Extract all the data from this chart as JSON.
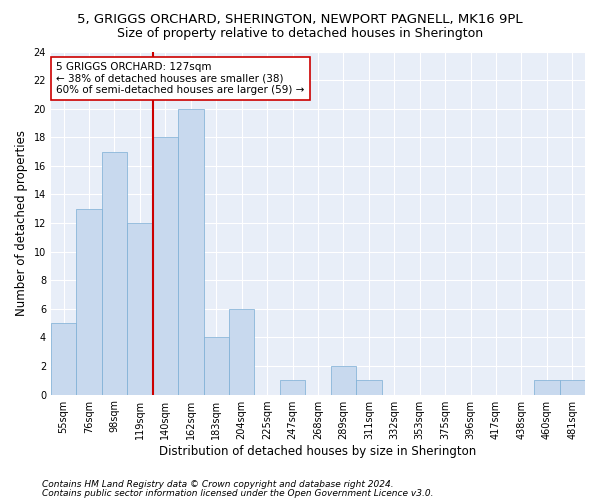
{
  "title": "5, GRIGGS ORCHARD, SHERINGTON, NEWPORT PAGNELL, MK16 9PL",
  "subtitle": "Size of property relative to detached houses in Sherington",
  "xlabel": "Distribution of detached houses by size in Sherington",
  "ylabel": "Number of detached properties",
  "categories": [
    "55sqm",
    "76sqm",
    "98sqm",
    "119sqm",
    "140sqm",
    "162sqm",
    "183sqm",
    "204sqm",
    "225sqm",
    "247sqm",
    "268sqm",
    "289sqm",
    "311sqm",
    "332sqm",
    "353sqm",
    "375sqm",
    "396sqm",
    "417sqm",
    "438sqm",
    "460sqm",
    "481sqm"
  ],
  "values": [
    5,
    13,
    17,
    12,
    18,
    20,
    4,
    6,
    0,
    1,
    0,
    2,
    1,
    0,
    0,
    0,
    0,
    0,
    0,
    1,
    1
  ],
  "bar_color": "#c8d9ee",
  "bar_edge_color": "#7aadd4",
  "vline_x": 3.5,
  "vline_color": "#cc0000",
  "annotation_lines": [
    "5 GRIGGS ORCHARD: 127sqm",
    "← 38% of detached houses are smaller (38)",
    "60% of semi-detached houses are larger (59) →"
  ],
  "annotation_box_facecolor": "#ffffff",
  "annotation_box_edgecolor": "#cc0000",
  "ylim": [
    0,
    24
  ],
  "yticks": [
    0,
    2,
    4,
    6,
    8,
    10,
    12,
    14,
    16,
    18,
    20,
    22,
    24
  ],
  "footer1": "Contains HM Land Registry data © Crown copyright and database right 2024.",
  "footer2": "Contains public sector information licensed under the Open Government Licence v3.0.",
  "bg_color": "#ffffff",
  "plot_bg_color": "#e8eef8",
  "title_fontsize": 9.5,
  "subtitle_fontsize": 9,
  "axis_label_fontsize": 8.5,
  "tick_fontsize": 7,
  "annotation_fontsize": 7.5,
  "footer_fontsize": 6.5
}
